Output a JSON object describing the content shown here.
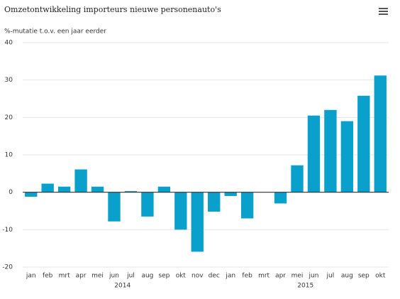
{
  "chart_data": {
    "type": "bar",
    "title": "Omzetontwikkeling importeurs nieuwe personenauto's",
    "subtitle": "%-mutatie t.o.v. een jaar eerder",
    "categories": [
      "jan",
      "feb",
      "mrt",
      "apr",
      "mei",
      "jun",
      "jul",
      "aug",
      "sep",
      "okt",
      "nov",
      "dec",
      "jan",
      "feb",
      "mrt",
      "apr",
      "mei",
      "jun",
      "jul",
      "aug",
      "sep",
      "okt"
    ],
    "groups": [
      "2014",
      "2015"
    ],
    "values": [
      -1.2,
      2.3,
      1.5,
      6.1,
      1.5,
      -7.8,
      0.3,
      -6.5,
      1.5,
      -10,
      -15.9,
      -5.2,
      -1,
      -7,
      0,
      -3,
      7.2,
      20.5,
      22,
      19,
      25.8,
      31.2
    ],
    "color": "#0aa0cc",
    "ylim": [
      -20,
      40
    ],
    "yticks": [
      -20,
      -10,
      0,
      10,
      20,
      30,
      40
    ],
    "grid": true
  }
}
